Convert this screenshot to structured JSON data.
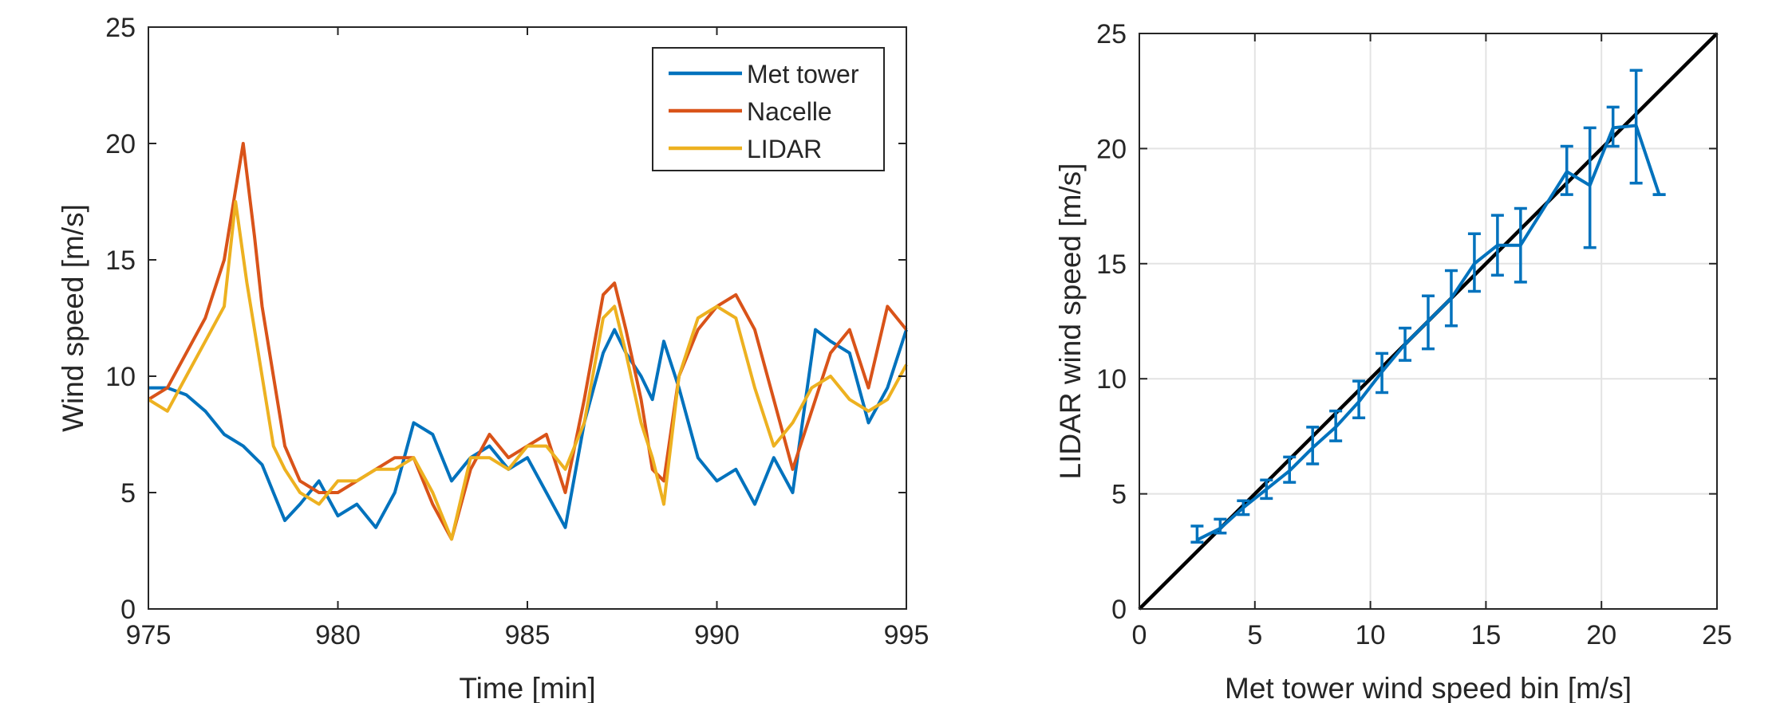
{
  "colors": {
    "met_tower": "#0072BD",
    "nacelle": "#D95319",
    "lidar": "#EDB120",
    "reference_line": "#000000",
    "axes": "#262626",
    "grid": "#e3e3e3"
  },
  "chart_data": [
    {
      "type": "line",
      "title": "",
      "xlabel": "Time [min]",
      "ylabel": "Wind speed [m/s]",
      "xlim": [
        975,
        995
      ],
      "ylim": [
        0,
        25
      ],
      "xticks": [
        "975",
        "980",
        "985",
        "990",
        "995"
      ],
      "yticks": [
        "0",
        "5",
        "10",
        "15",
        "20",
        "25"
      ],
      "grid": false,
      "legend": "top-right",
      "series": [
        {
          "name": "Met tower",
          "color": "#0072BD",
          "x": [
            975.0,
            975.5,
            976.0,
            976.5,
            977.0,
            977.5,
            978.0,
            978.3,
            978.6,
            979.0,
            979.5,
            980.0,
            980.5,
            981.0,
            981.5,
            982.0,
            982.5,
            983.0,
            983.5,
            984.0,
            984.5,
            985.0,
            985.5,
            986.0,
            986.5,
            987.0,
            987.3,
            987.6,
            988.0,
            988.3,
            988.6,
            989.0,
            989.5,
            990.0,
            990.5,
            991.0,
            991.5,
            992.0,
            992.3,
            992.6,
            993.0,
            993.5,
            994.0,
            994.5,
            995.0
          ],
          "y": [
            9.5,
            9.5,
            9.2,
            8.5,
            7.5,
            7.0,
            6.2,
            5.0,
            3.8,
            4.5,
            5.5,
            4.0,
            4.5,
            3.5,
            5.0,
            8.0,
            7.5,
            5.5,
            6.5,
            7.0,
            6.0,
            6.5,
            5.0,
            3.5,
            8.0,
            11.0,
            12.0,
            11.0,
            10.0,
            9.0,
            11.5,
            9.5,
            6.5,
            5.5,
            6.0,
            4.5,
            6.5,
            5.0,
            8.5,
            12.0,
            11.5,
            11.0,
            8.0,
            9.5,
            12.0
          ]
        },
        {
          "name": "Nacelle",
          "color": "#D95319",
          "x": [
            975.0,
            975.5,
            976.0,
            976.5,
            977.0,
            977.3,
            977.5,
            977.8,
            978.0,
            978.3,
            978.6,
            979.0,
            979.5,
            980.0,
            980.5,
            981.0,
            981.5,
            982.0,
            982.5,
            983.0,
            983.5,
            984.0,
            984.5,
            985.0,
            985.5,
            986.0,
            986.5,
            987.0,
            987.3,
            987.6,
            988.0,
            988.3,
            988.6,
            989.0,
            989.5,
            990.0,
            990.5,
            991.0,
            991.5,
            992.0,
            992.5,
            993.0,
            993.5,
            994.0,
            994.5,
            995.0
          ],
          "y": [
            9.0,
            9.5,
            11.0,
            12.5,
            15.0,
            18.0,
            20.0,
            16.0,
            13.0,
            10.0,
            7.0,
            5.5,
            5.0,
            5.0,
            5.5,
            6.0,
            6.5,
            6.5,
            4.5,
            3.0,
            6.0,
            7.5,
            6.5,
            7.0,
            7.5,
            5.0,
            9.0,
            13.5,
            14.0,
            12.0,
            9.0,
            6.0,
            5.5,
            10.0,
            12.0,
            13.0,
            13.5,
            12.0,
            9.0,
            6.0,
            8.5,
            11.0,
            12.0,
            9.5,
            13.0,
            12.0
          ]
        },
        {
          "name": "LIDAR",
          "color": "#EDB120",
          "x": [
            975.0,
            975.5,
            976.0,
            976.5,
            977.0,
            977.3,
            977.6,
            978.0,
            978.3,
            978.6,
            979.0,
            979.5,
            980.0,
            980.5,
            981.0,
            981.5,
            982.0,
            982.5,
            983.0,
            983.5,
            984.0,
            984.5,
            985.0,
            985.5,
            986.0,
            986.5,
            987.0,
            987.3,
            987.6,
            988.0,
            988.3,
            988.6,
            989.0,
            989.5,
            990.0,
            990.5,
            991.0,
            991.5,
            992.0,
            992.5,
            993.0,
            993.5,
            994.0,
            994.5,
            995.0
          ],
          "y": [
            9.0,
            8.5,
            10.0,
            11.5,
            13.0,
            17.5,
            14.0,
            10.0,
            7.0,
            6.0,
            5.0,
            4.5,
            5.5,
            5.5,
            6.0,
            6.0,
            6.5,
            5.0,
            3.0,
            6.5,
            6.5,
            6.0,
            7.0,
            7.0,
            6.0,
            8.0,
            12.5,
            13.0,
            11.0,
            8.0,
            6.5,
            4.5,
            10.0,
            12.5,
            13.0,
            12.5,
            9.5,
            7.0,
            8.0,
            9.5,
            10.0,
            9.0,
            8.5,
            9.0,
            10.5
          ]
        }
      ]
    },
    {
      "type": "line",
      "title": "",
      "xlabel": "Met tower wind speed bin [m/s]",
      "ylabel": "LIDAR wind speed [m/s]",
      "xlim": [
        0,
        25
      ],
      "ylim": [
        0,
        25
      ],
      "xticks": [
        "0",
        "5",
        "10",
        "15",
        "20",
        "25"
      ],
      "yticks": [
        "0",
        "5",
        "10",
        "15",
        "20",
        "25"
      ],
      "grid": true,
      "legend": "none",
      "series": [
        {
          "color": "#0072BD",
          "x": [
            2.5,
            3.5,
            4.5,
            5.5,
            6.5,
            7.5,
            8.5,
            9.5,
            10.5,
            11.5,
            12.5,
            13.5,
            14.5,
            15.5,
            16.5,
            18.5,
            19.5,
            20.5,
            21.5,
            22.5
          ],
          "y": [
            3.0,
            3.5,
            4.4,
            5.2,
            6.0,
            7.0,
            7.9,
            9.0,
            10.3,
            11.5,
            12.5,
            13.5,
            15.0,
            15.8,
            15.8,
            19.0,
            18.4,
            20.9,
            21.0,
            18.0
          ],
          "err_low": [
            2.9,
            3.3,
            4.1,
            4.8,
            5.5,
            6.3,
            7.3,
            8.3,
            9.4,
            10.8,
            11.3,
            12.3,
            13.8,
            14.5,
            14.2,
            18.0,
            15.7,
            20.1,
            18.5,
            18.0
          ],
          "err_high": [
            3.6,
            3.9,
            4.7,
            5.6,
            6.6,
            7.9,
            8.6,
            9.9,
            11.1,
            12.2,
            13.6,
            14.7,
            16.3,
            17.1,
            17.4,
            20.1,
            20.9,
            21.8,
            23.4,
            18.0
          ]
        },
        {
          "color": "#000000",
          "x": [
            0,
            25
          ],
          "y": [
            0,
            25
          ]
        }
      ]
    }
  ]
}
